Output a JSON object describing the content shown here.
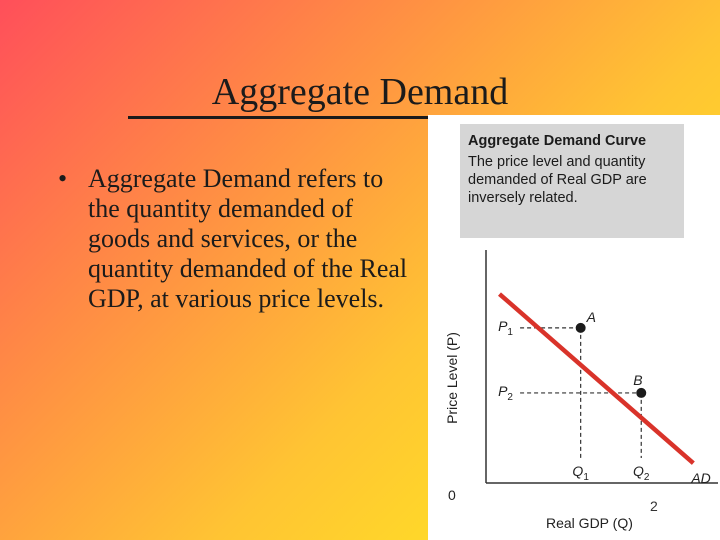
{
  "slide": {
    "title": "Aggregate Demand",
    "bullet_marker": "•",
    "bullet_text": "Aggregate Demand refers to the quantity demanded of goods and services, or the quantity demanded of the Real GDP, at various price levels.",
    "page_number": "2"
  },
  "figure": {
    "caption_title": "Aggregate Demand Curve",
    "caption_body": "The price level and quantity demanded of Real GDP are inversely related."
  },
  "chart_data": {
    "type": "line",
    "xlabel": "Real GDP (Q)",
    "ylabel": "Price Level (P)",
    "origin_label": "0",
    "x_ticks": [
      "Q",
      "Q"
    ],
    "x_tick_subscripts": [
      "1",
      "2"
    ],
    "y_ticks": [
      "P",
      "P"
    ],
    "y_tick_subscripts": [
      "1",
      "2"
    ],
    "series": [
      {
        "name": "AD",
        "color": "#d9332a"
      }
    ],
    "points": [
      {
        "label": "A",
        "x": 1,
        "y": 2
      },
      {
        "label": "B",
        "x": 2,
        "y": 1
      }
    ],
    "curve": [
      {
        "x": -0.34,
        "y": 2.52
      },
      {
        "x": 2.86,
        "y": -0.08
      }
    ],
    "xlim": [
      -1.52,
      3.3
    ],
    "ylim": [
      -1.26,
      3.35
    ],
    "grid": false,
    "dashed_guides": true
  }
}
